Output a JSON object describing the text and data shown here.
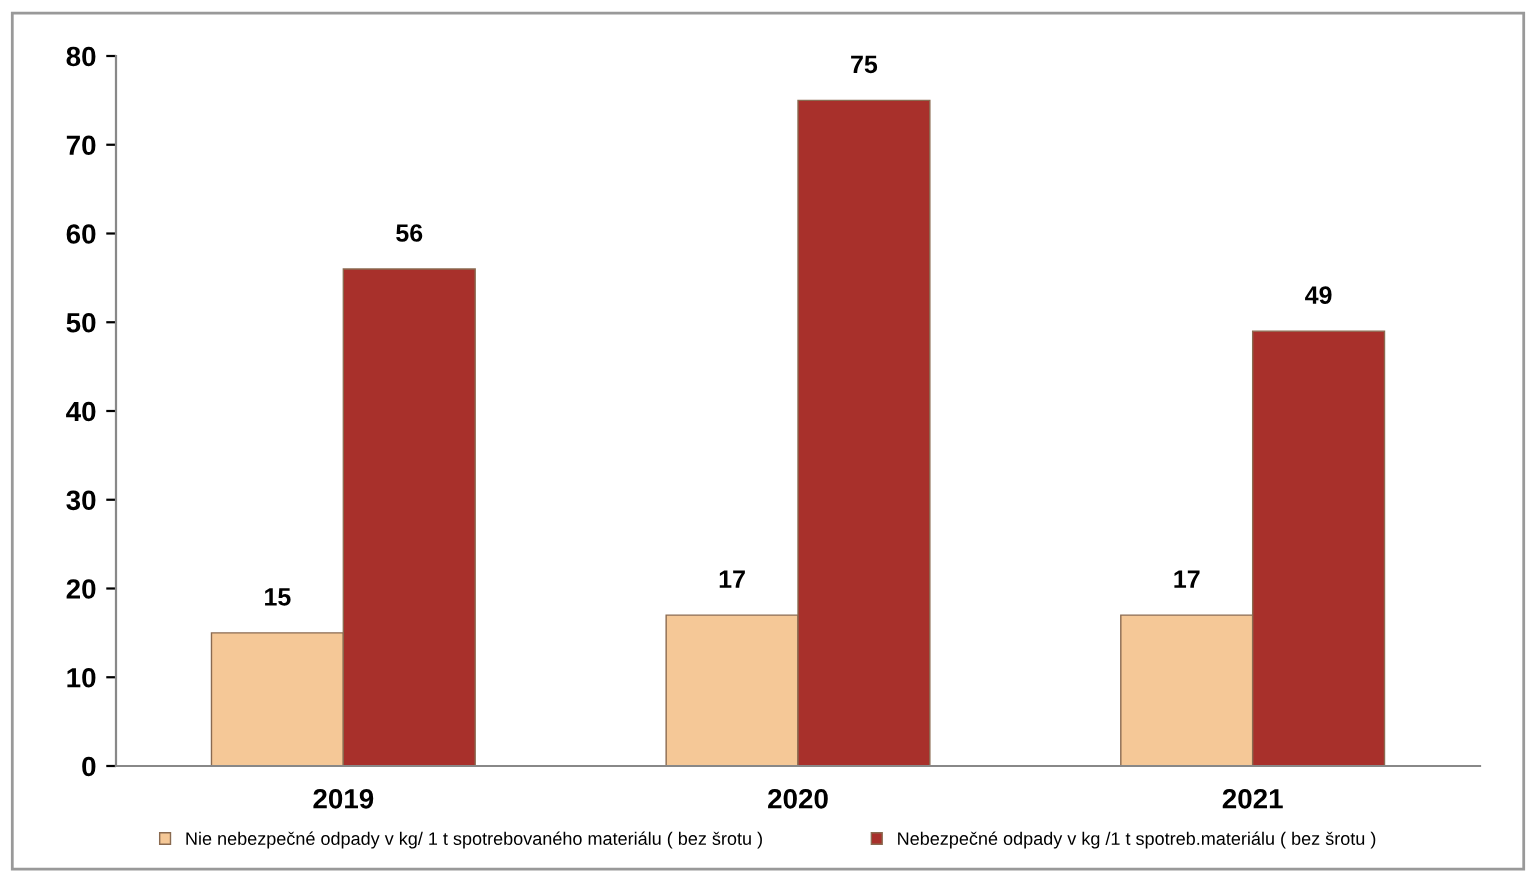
{
  "chart_data": {
    "type": "bar",
    "categories": [
      "2019",
      "2020",
      "2021"
    ],
    "series": [
      {
        "name": "Nie nebezpečné odpady v kg/ 1 t spotrebovaného materiálu ( bez šrotu )",
        "color": "#f5c897",
        "values": [
          15,
          17,
          17
        ]
      },
      {
        "name": "Nebezpečné odpady v kg /1 t spotreb.materiálu ( bez šrotu )",
        "color": "#a8302b",
        "values": [
          56,
          75,
          49
        ]
      }
    ],
    "ylim": [
      0,
      80
    ],
    "yticks": [
      0,
      10,
      20,
      30,
      40,
      50,
      60,
      70,
      80
    ],
    "data_labels": true,
    "legend": "bottom",
    "grid": false
  }
}
